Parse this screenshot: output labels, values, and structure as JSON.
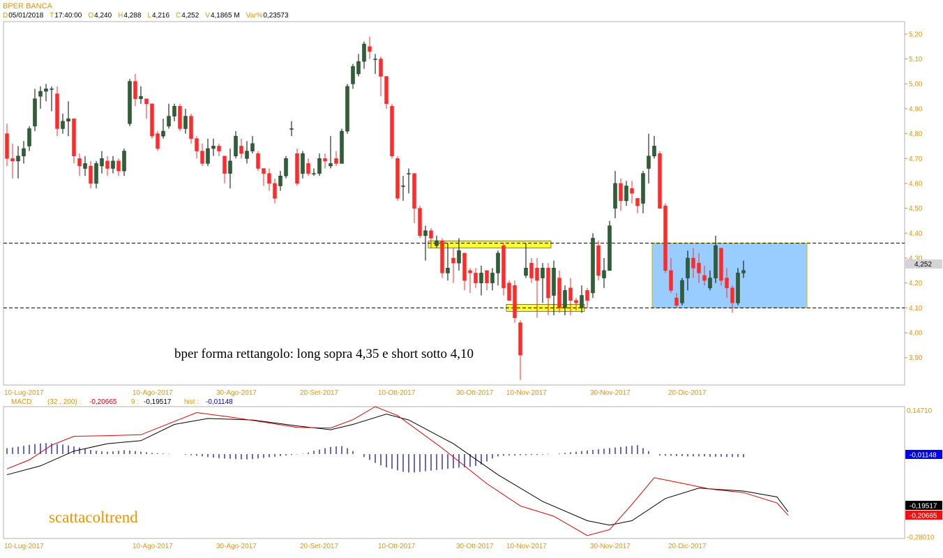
{
  "header": {
    "symbol": "BPER BANCA",
    "labels": [
      "D",
      "T",
      "O",
      "H",
      "L",
      "C",
      "V",
      "Var%"
    ],
    "values": [
      "05/01/2018",
      "17:40:00",
      "4,240",
      "4,288",
      "4,216",
      "4,252",
      "4,1865 M",
      "0,23573"
    ]
  },
  "colors": {
    "up": "#2f5e37",
    "down": "#ff2a2a",
    "label_orange": "#e69500",
    "highlight": "#ffff33",
    "rectangle_fill": "#99ccff",
    "macd_line": "#000000",
    "signal_line": "#e00000",
    "hist": "#0000aa"
  },
  "annotations": {
    "main_text": "bper forma rettangolo: long sopra 4,35 e short sotto 4,10",
    "watermark": "scattacoltrend"
  },
  "chart_data": [
    {
      "type": "candlestick",
      "ylim": [
        3.79,
        5.25
      ],
      "yticks": [
        "5,20",
        "5,10",
        "5,00",
        "4,90",
        "4,80",
        "4,70",
        "4,60",
        "4,50",
        "4,40",
        "4,30",
        "4,20",
        "4,10",
        "4,00",
        "3,90"
      ],
      "ytick_values": [
        5.2,
        5.1,
        5.0,
        4.9,
        4.8,
        4.7,
        4.6,
        4.5,
        4.4,
        4.3,
        4.2,
        4.1,
        4.0,
        3.9
      ],
      "xlabels": [
        {
          "label": "10-Lug-2017",
          "index": 0
        },
        {
          "label": "10-Ago-2017",
          "index": 23
        },
        {
          "label": "30-Ago-2017",
          "index": 38
        },
        {
          "label": "20-Set-2017",
          "index": 53
        },
        {
          "label": "10-Ott-2017",
          "index": 67
        },
        {
          "label": "30-Ott-2017",
          "index": 81
        },
        {
          "label": "10-Nov-2017",
          "index": 90
        },
        {
          "label": "30-Nov-2017",
          "index": 105
        },
        {
          "label": "20-Dic-2017",
          "index": 119
        }
      ],
      "last_price_label": "4,252",
      "last_price": 4.252,
      "levels": [
        4.36,
        4.1
      ],
      "zones": [
        {
          "from": 76,
          "to": 97,
          "y": 4.355
        },
        {
          "from": 90,
          "to": 103,
          "y": 4.1
        }
      ],
      "rectangle": {
        "from": 116,
        "to": 143,
        "top": 4.36,
        "bottom": 4.1
      },
      "candles": [
        [
          4.8,
          4.7,
          4.84,
          4.67
        ],
        [
          4.7,
          4.69,
          4.76,
          4.62
        ],
        [
          4.69,
          4.71,
          4.75,
          4.62
        ],
        [
          4.71,
          4.74,
          4.77,
          4.68
        ],
        [
          4.75,
          4.82,
          4.83,
          4.73
        ],
        [
          4.83,
          4.94,
          4.98,
          4.81
        ],
        [
          4.95,
          4.97,
          4.99,
          4.9
        ],
        [
          4.97,
          4.98,
          5.0,
          4.93
        ],
        [
          4.98,
          4.98,
          4.99,
          4.89
        ],
        [
          4.96,
          4.82,
          4.99,
          4.79
        ],
        [
          4.82,
          4.85,
          4.88,
          4.8
        ],
        [
          4.85,
          4.86,
          4.93,
          4.79
        ],
        [
          4.86,
          4.71,
          4.86,
          4.68
        ],
        [
          4.7,
          4.67,
          4.72,
          4.63
        ],
        [
          4.66,
          4.68,
          4.71,
          4.63
        ],
        [
          4.67,
          4.6,
          4.69,
          4.58
        ],
        [
          4.6,
          4.68,
          4.69,
          4.58
        ],
        [
          4.67,
          4.7,
          4.73,
          4.64
        ],
        [
          4.69,
          4.66,
          4.71,
          4.63
        ],
        [
          4.66,
          4.69,
          4.71,
          4.64
        ],
        [
          4.69,
          4.65,
          4.7,
          4.63
        ],
        [
          4.65,
          4.73,
          4.74,
          4.63
        ],
        [
          4.84,
          5.01,
          5.02,
          4.83
        ],
        [
          5.01,
          4.94,
          5.04,
          4.91
        ],
        [
          4.94,
          4.95,
          4.99,
          4.92
        ],
        [
          4.94,
          4.92,
          4.94,
          4.86
        ],
        [
          4.92,
          4.79,
          4.92,
          4.78
        ],
        [
          4.8,
          4.74,
          4.81,
          4.73
        ],
        [
          4.79,
          4.81,
          4.86,
          4.78
        ],
        [
          4.83,
          4.87,
          4.92,
          4.82
        ],
        [
          4.87,
          4.91,
          4.92,
          4.85
        ],
        [
          4.91,
          4.82,
          4.92,
          4.81
        ],
        [
          4.82,
          4.87,
          4.9,
          4.8
        ],
        [
          4.87,
          4.78,
          4.88,
          4.76
        ],
        [
          4.78,
          4.73,
          4.79,
          4.7
        ],
        [
          4.73,
          4.68,
          4.76,
          4.67
        ],
        [
          4.68,
          4.74,
          4.78,
          4.67
        ],
        [
          4.74,
          4.75,
          4.78,
          4.71
        ],
        [
          4.75,
          4.73,
          4.76,
          4.71
        ],
        [
          4.71,
          4.64,
          4.71,
          4.6
        ],
        [
          4.64,
          4.69,
          4.74,
          4.58
        ],
        [
          4.71,
          4.79,
          4.81,
          4.7
        ],
        [
          4.75,
          4.72,
          4.78,
          4.7
        ],
        [
          4.7,
          4.73,
          4.77,
          4.68
        ],
        [
          4.73,
          4.76,
          4.79,
          4.72
        ],
        [
          4.72,
          4.66,
          4.73,
          4.65
        ],
        [
          4.66,
          4.64,
          4.66,
          4.59
        ],
        [
          4.64,
          4.6,
          4.66,
          4.57
        ],
        [
          4.6,
          4.54,
          4.62,
          4.52
        ],
        [
          4.59,
          4.63,
          4.65,
          4.57
        ],
        [
          4.63,
          4.7,
          4.71,
          4.62
        ],
        [
          4.82,
          4.82,
          4.85,
          4.79
        ],
        [
          4.72,
          4.6,
          4.74,
          4.59
        ],
        [
          4.64,
          4.72,
          4.73,
          4.62
        ],
        [
          4.68,
          4.64,
          4.7,
          4.63
        ],
        [
          4.64,
          4.64,
          4.66,
          4.63
        ],
        [
          4.64,
          4.7,
          4.72,
          4.63
        ],
        [
          4.7,
          4.69,
          4.72,
          4.66
        ],
        [
          4.67,
          4.68,
          4.79,
          4.66
        ],
        [
          4.7,
          4.68,
          4.73,
          4.67
        ],
        [
          4.68,
          4.81,
          4.82,
          4.68
        ],
        [
          4.81,
          4.99,
          5.0,
          4.8
        ],
        [
          5.0,
          5.07,
          5.08,
          4.98
        ],
        [
          5.04,
          5.09,
          5.12,
          5.03
        ],
        [
          5.09,
          5.16,
          5.17,
          5.06
        ],
        [
          5.15,
          5.13,
          5.19,
          5.1
        ],
        [
          5.1,
          5.1,
          5.12,
          5.04
        ],
        [
          5.1,
          5.03,
          5.11,
          4.95
        ],
        [
          5.03,
          4.92,
          5.03,
          4.9
        ],
        [
          4.91,
          4.71,
          4.92,
          4.7
        ],
        [
          4.7,
          4.54,
          4.71,
          4.53
        ],
        [
          4.59,
          4.59,
          4.63,
          4.53
        ],
        [
          4.64,
          4.64,
          4.66,
          4.56
        ],
        [
          4.64,
          4.5,
          4.64,
          4.44
        ],
        [
          4.5,
          4.39,
          4.51,
          4.38
        ],
        [
          4.39,
          4.41,
          4.43,
          4.29
        ],
        [
          4.41,
          4.38,
          4.42,
          4.34
        ],
        [
          4.35,
          4.37,
          4.39,
          4.34
        ],
        [
          4.37,
          4.24,
          4.38,
          4.22
        ],
        [
          4.24,
          4.26,
          4.36,
          4.21
        ],
        [
          4.3,
          4.28,
          4.34,
          4.2
        ],
        [
          4.28,
          4.33,
          4.38,
          4.25
        ],
        [
          4.32,
          4.21,
          4.32,
          4.17
        ],
        [
          4.25,
          4.24,
          4.26,
          4.16
        ],
        [
          4.24,
          4.2,
          4.26,
          4.18
        ],
        [
          4.2,
          4.24,
          4.27,
          4.15
        ],
        [
          4.25,
          4.2,
          4.25,
          4.17
        ],
        [
          4.2,
          4.24,
          4.26,
          4.17
        ],
        [
          4.24,
          4.32,
          4.33,
          4.19
        ],
        [
          4.35,
          4.18,
          4.36,
          4.15
        ],
        [
          4.2,
          4.13,
          4.21,
          4.13
        ],
        [
          4.19,
          4.06,
          4.21,
          4.04
        ],
        [
          4.04,
          3.91,
          4.05,
          3.81
        ],
        [
          4.23,
          4.26,
          4.36,
          4.22
        ],
        [
          4.28,
          4.22,
          4.3,
          4.2
        ],
        [
          4.26,
          4.21,
          4.3,
          4.06
        ],
        [
          4.22,
          4.26,
          4.28,
          4.12
        ],
        [
          4.26,
          4.14,
          4.28,
          4.07
        ],
        [
          4.15,
          4.26,
          4.29,
          4.07
        ],
        [
          4.22,
          4.1,
          4.25,
          4.08
        ],
        [
          4.1,
          4.17,
          4.19,
          4.07
        ],
        [
          4.18,
          4.13,
          4.22,
          4.07
        ],
        [
          4.13,
          4.12,
          4.14,
          4.09
        ],
        [
          4.1,
          4.15,
          4.19,
          4.08
        ],
        [
          4.17,
          4.13,
          4.18,
          4.1
        ],
        [
          4.16,
          4.38,
          4.4,
          4.14
        ],
        [
          4.35,
          4.23,
          4.37,
          4.21
        ],
        [
          4.22,
          4.25,
          4.3,
          4.18
        ],
        [
          4.25,
          4.43,
          4.45,
          4.25
        ],
        [
          4.5,
          4.6,
          4.65,
          4.46
        ],
        [
          4.6,
          4.53,
          4.62,
          4.49
        ],
        [
          4.53,
          4.59,
          4.61,
          4.51
        ],
        [
          4.58,
          4.56,
          4.61,
          4.52
        ],
        [
          4.54,
          4.51,
          4.54,
          4.48
        ],
        [
          4.52,
          4.64,
          4.65,
          4.48
        ],
        [
          4.66,
          4.71,
          4.8,
          4.6
        ],
        [
          4.71,
          4.75,
          4.79,
          4.7
        ],
        [
          4.72,
          4.5,
          4.73,
          4.5
        ],
        [
          4.51,
          4.25,
          4.52,
          4.24
        ],
        [
          4.25,
          4.17,
          4.3,
          4.16
        ],
        [
          4.14,
          4.11,
          4.16,
          4.1
        ],
        [
          4.12,
          4.21,
          4.22,
          4.11
        ],
        [
          4.22,
          4.3,
          4.33,
          4.17
        ],
        [
          4.3,
          4.26,
          4.34,
          4.22
        ],
        [
          4.28,
          4.24,
          4.32,
          4.2
        ],
        [
          4.23,
          4.21,
          4.27,
          4.19
        ],
        [
          4.18,
          4.22,
          4.25,
          4.17
        ],
        [
          4.22,
          4.35,
          4.39,
          4.2
        ],
        [
          4.34,
          4.21,
          4.34,
          4.19
        ],
        [
          4.22,
          4.18,
          4.26,
          4.14
        ],
        [
          4.18,
          4.12,
          4.19,
          4.08
        ],
        [
          4.12,
          4.24,
          4.26,
          4.11
        ],
        [
          4.24,
          4.25,
          4.29,
          4.22
        ]
      ]
    },
    {
      "type": "macd",
      "legend": {
        "name": "MACD",
        "params": "(32 , 200) :",
        "macd": "-0,20665",
        "signal_period": "9 :",
        "signal": "-0,19517",
        "hist_label": "hist :",
        "hist": "-0,01148"
      },
      "ylim": [
        -0.285,
        0.16
      ],
      "yticks": [
        "0,14710",
        "-0,28010"
      ],
      "ytick_values": [
        0.1471,
        -0.2801
      ],
      "value_labels": [
        {
          "text": "-0,01148",
          "value": -0.01148,
          "color": "#0000cc"
        },
        {
          "text": "-0,19517",
          "value": -0.19517,
          "color": "#000000"
        },
        {
          "text": "-0,20665",
          "value": -0.20665,
          "color": "#ff2020"
        }
      ],
      "xlabels": [
        {
          "label": "10-Lug-2017",
          "index": 0
        },
        {
          "label": "10-Ago-2017",
          "index": 23
        },
        {
          "label": "30-Ago-2017",
          "index": 38
        },
        {
          "label": "20-Set-2017",
          "index": 53
        },
        {
          "label": "10-Ott-2017",
          "index": 67
        },
        {
          "label": "30-Ott-2017",
          "index": 81
        },
        {
          "label": "10-Nov-2017",
          "index": 90
        },
        {
          "label": "30-Nov-2017",
          "index": 105
        },
        {
          "label": "20-Dic-2017",
          "index": 119
        }
      ],
      "signal_line_pts": [
        [
          0,
          -0.07
        ],
        [
          6,
          -0.04
        ],
        [
          12,
          0.01
        ],
        [
          18,
          0.035
        ],
        [
          24,
          0.045
        ],
        [
          30,
          0.1
        ],
        [
          36,
          0.12
        ],
        [
          44,
          0.115
        ],
        [
          52,
          0.095
        ],
        [
          58,
          0.082
        ],
        [
          62,
          0.1
        ],
        [
          68,
          0.135
        ],
        [
          72,
          0.115
        ],
        [
          80,
          0.035
        ],
        [
          88,
          -0.07
        ],
        [
          96,
          -0.16
        ],
        [
          104,
          -0.225
        ],
        [
          108,
          -0.24
        ],
        [
          112,
          -0.225
        ],
        [
          118,
          -0.15
        ],
        [
          124,
          -0.115
        ],
        [
          132,
          -0.125
        ],
        [
          138,
          -0.145
        ],
        [
          140,
          -0.19517
        ]
      ],
      "macd_line_pts": [
        [
          0,
          -0.05
        ],
        [
          4,
          -0.02
        ],
        [
          8,
          0.03
        ],
        [
          12,
          0.06
        ],
        [
          18,
          0.062
        ],
        [
          24,
          0.065
        ],
        [
          30,
          0.11
        ],
        [
          34,
          0.14
        ],
        [
          40,
          0.125
        ],
        [
          46,
          0.108
        ],
        [
          52,
          0.09
        ],
        [
          58,
          0.088
        ],
        [
          62,
          0.116
        ],
        [
          66,
          0.16
        ],
        [
          70,
          0.13
        ],
        [
          78,
          0.02
        ],
        [
          86,
          -0.1
        ],
        [
          92,
          -0.175
        ],
        [
          98,
          -0.21
        ],
        [
          104,
          -0.275
        ],
        [
          108,
          -0.255
        ],
        [
          112,
          -0.17
        ],
        [
          116,
          -0.08
        ],
        [
          120,
          -0.095
        ],
        [
          126,
          -0.118
        ],
        [
          132,
          -0.13
        ],
        [
          138,
          -0.165
        ],
        [
          140,
          -0.20665
        ]
      ],
      "hist_values": [
        0.02,
        0.022,
        0.025,
        0.028,
        0.031,
        0.034,
        0.036,
        0.037,
        0.036,
        0.034,
        0.032,
        0.029,
        0.026,
        0.022,
        0.018,
        0.014,
        0.011,
        0.009,
        0.008,
        0.009,
        0.011,
        0.013,
        0.012,
        0.01,
        0.008,
        0.006,
        0.004,
        0.003,
        0.002,
        0.001,
        0.0,
        0.0,
        -0.002,
        -0.004,
        -0.006,
        -0.008,
        -0.01,
        -0.012,
        -0.014,
        -0.015,
        -0.016,
        -0.017,
        -0.018,
        -0.018,
        -0.017,
        -0.015,
        -0.013,
        -0.011,
        -0.009,
        -0.007,
        -0.005,
        -0.003,
        -0.001,
        0.001,
        0.005,
        0.011,
        0.015,
        0.02,
        0.024,
        0.026,
        0.027,
        0.02,
        0.01,
        0.0,
        -0.01,
        -0.02,
        -0.03,
        -0.038,
        -0.045,
        -0.05,
        -0.055,
        -0.06,
        -0.062,
        -0.062,
        -0.06,
        -0.058,
        -0.056,
        -0.054,
        -0.052,
        -0.05,
        -0.048,
        -0.046,
        -0.045,
        -0.043,
        -0.04,
        -0.035,
        -0.025,
        -0.015,
        -0.008,
        -0.006,
        -0.005,
        -0.005,
        -0.004,
        -0.004,
        -0.003,
        -0.003,
        -0.002,
        -0.001,
        0.0,
        0.002,
        0.004,
        0.006,
        0.008,
        0.01,
        0.012,
        0.014,
        0.016,
        0.018,
        0.02,
        0.022,
        0.024,
        0.026,
        0.028,
        0.03,
        0.02,
        0.01,
        0.0,
        -0.005,
        -0.006,
        -0.006,
        -0.007,
        -0.007,
        -0.008,
        -0.008,
        -0.008,
        -0.008,
        -0.009,
        -0.009,
        -0.009,
        -0.01,
        -0.01,
        -0.01,
        -0.011
      ]
    }
  ]
}
